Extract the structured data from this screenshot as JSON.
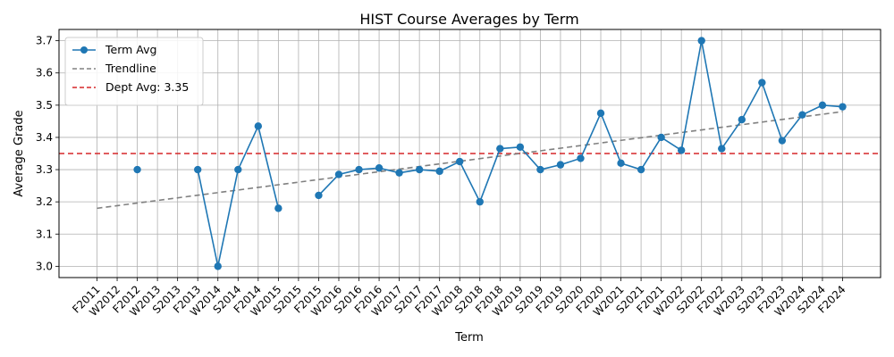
{
  "chart_data": {
    "type": "line",
    "title": "HIST Course Averages by Term",
    "xlabel": "Term",
    "ylabel": "Average Grade",
    "ylim": [
      2.965,
      3.735
    ],
    "yticks": [
      "3.0",
      "3.1",
      "3.2",
      "3.3",
      "3.4",
      "3.5",
      "3.6",
      "3.7"
    ],
    "ytick_values": [
      3.0,
      3.1,
      3.2,
      3.3,
      3.4,
      3.5,
      3.6,
      3.7
    ],
    "grid": true,
    "legend_position": "top-left",
    "categories": [
      "F2011",
      "W2012",
      "F2012",
      "W2013",
      "S2013",
      "F2013",
      "W2014",
      "S2014",
      "F2014",
      "W2015",
      "S2015",
      "F2015",
      "W2016",
      "S2016",
      "F2016",
      "W2017",
      "S2017",
      "F2017",
      "W2018",
      "S2018",
      "F2018",
      "W2019",
      "S2019",
      "F2019",
      "S2020",
      "F2020",
      "W2021",
      "S2021",
      "F2021",
      "W2022",
      "S2022",
      "F2022",
      "W2023",
      "S2023",
      "F2023",
      "W2024",
      "S2024",
      "F2024"
    ],
    "series": [
      {
        "name": "Term Avg",
        "color": "#1f77b4",
        "values": [
          null,
          null,
          3.3,
          null,
          null,
          3.3,
          3.0,
          3.3,
          3.435,
          3.18,
          null,
          3.22,
          3.285,
          3.3,
          3.305,
          3.29,
          3.3,
          3.295,
          3.325,
          3.2,
          3.365,
          3.37,
          3.3,
          3.315,
          3.335,
          3.475,
          3.32,
          3.3,
          3.4,
          3.36,
          3.7,
          3.365,
          3.455,
          3.57,
          3.39,
          3.47,
          3.5,
          3.495
        ]
      }
    ],
    "trendline": {
      "name": "Trendline",
      "color": "#808080",
      "start": 3.18,
      "end": 3.48
    },
    "reference_line": {
      "name": "Dept Avg: 3.35",
      "color": "#d62728",
      "value": 3.35
    },
    "legend": [
      "Term Avg",
      "Trendline",
      "Dept Avg: 3.35"
    ]
  }
}
